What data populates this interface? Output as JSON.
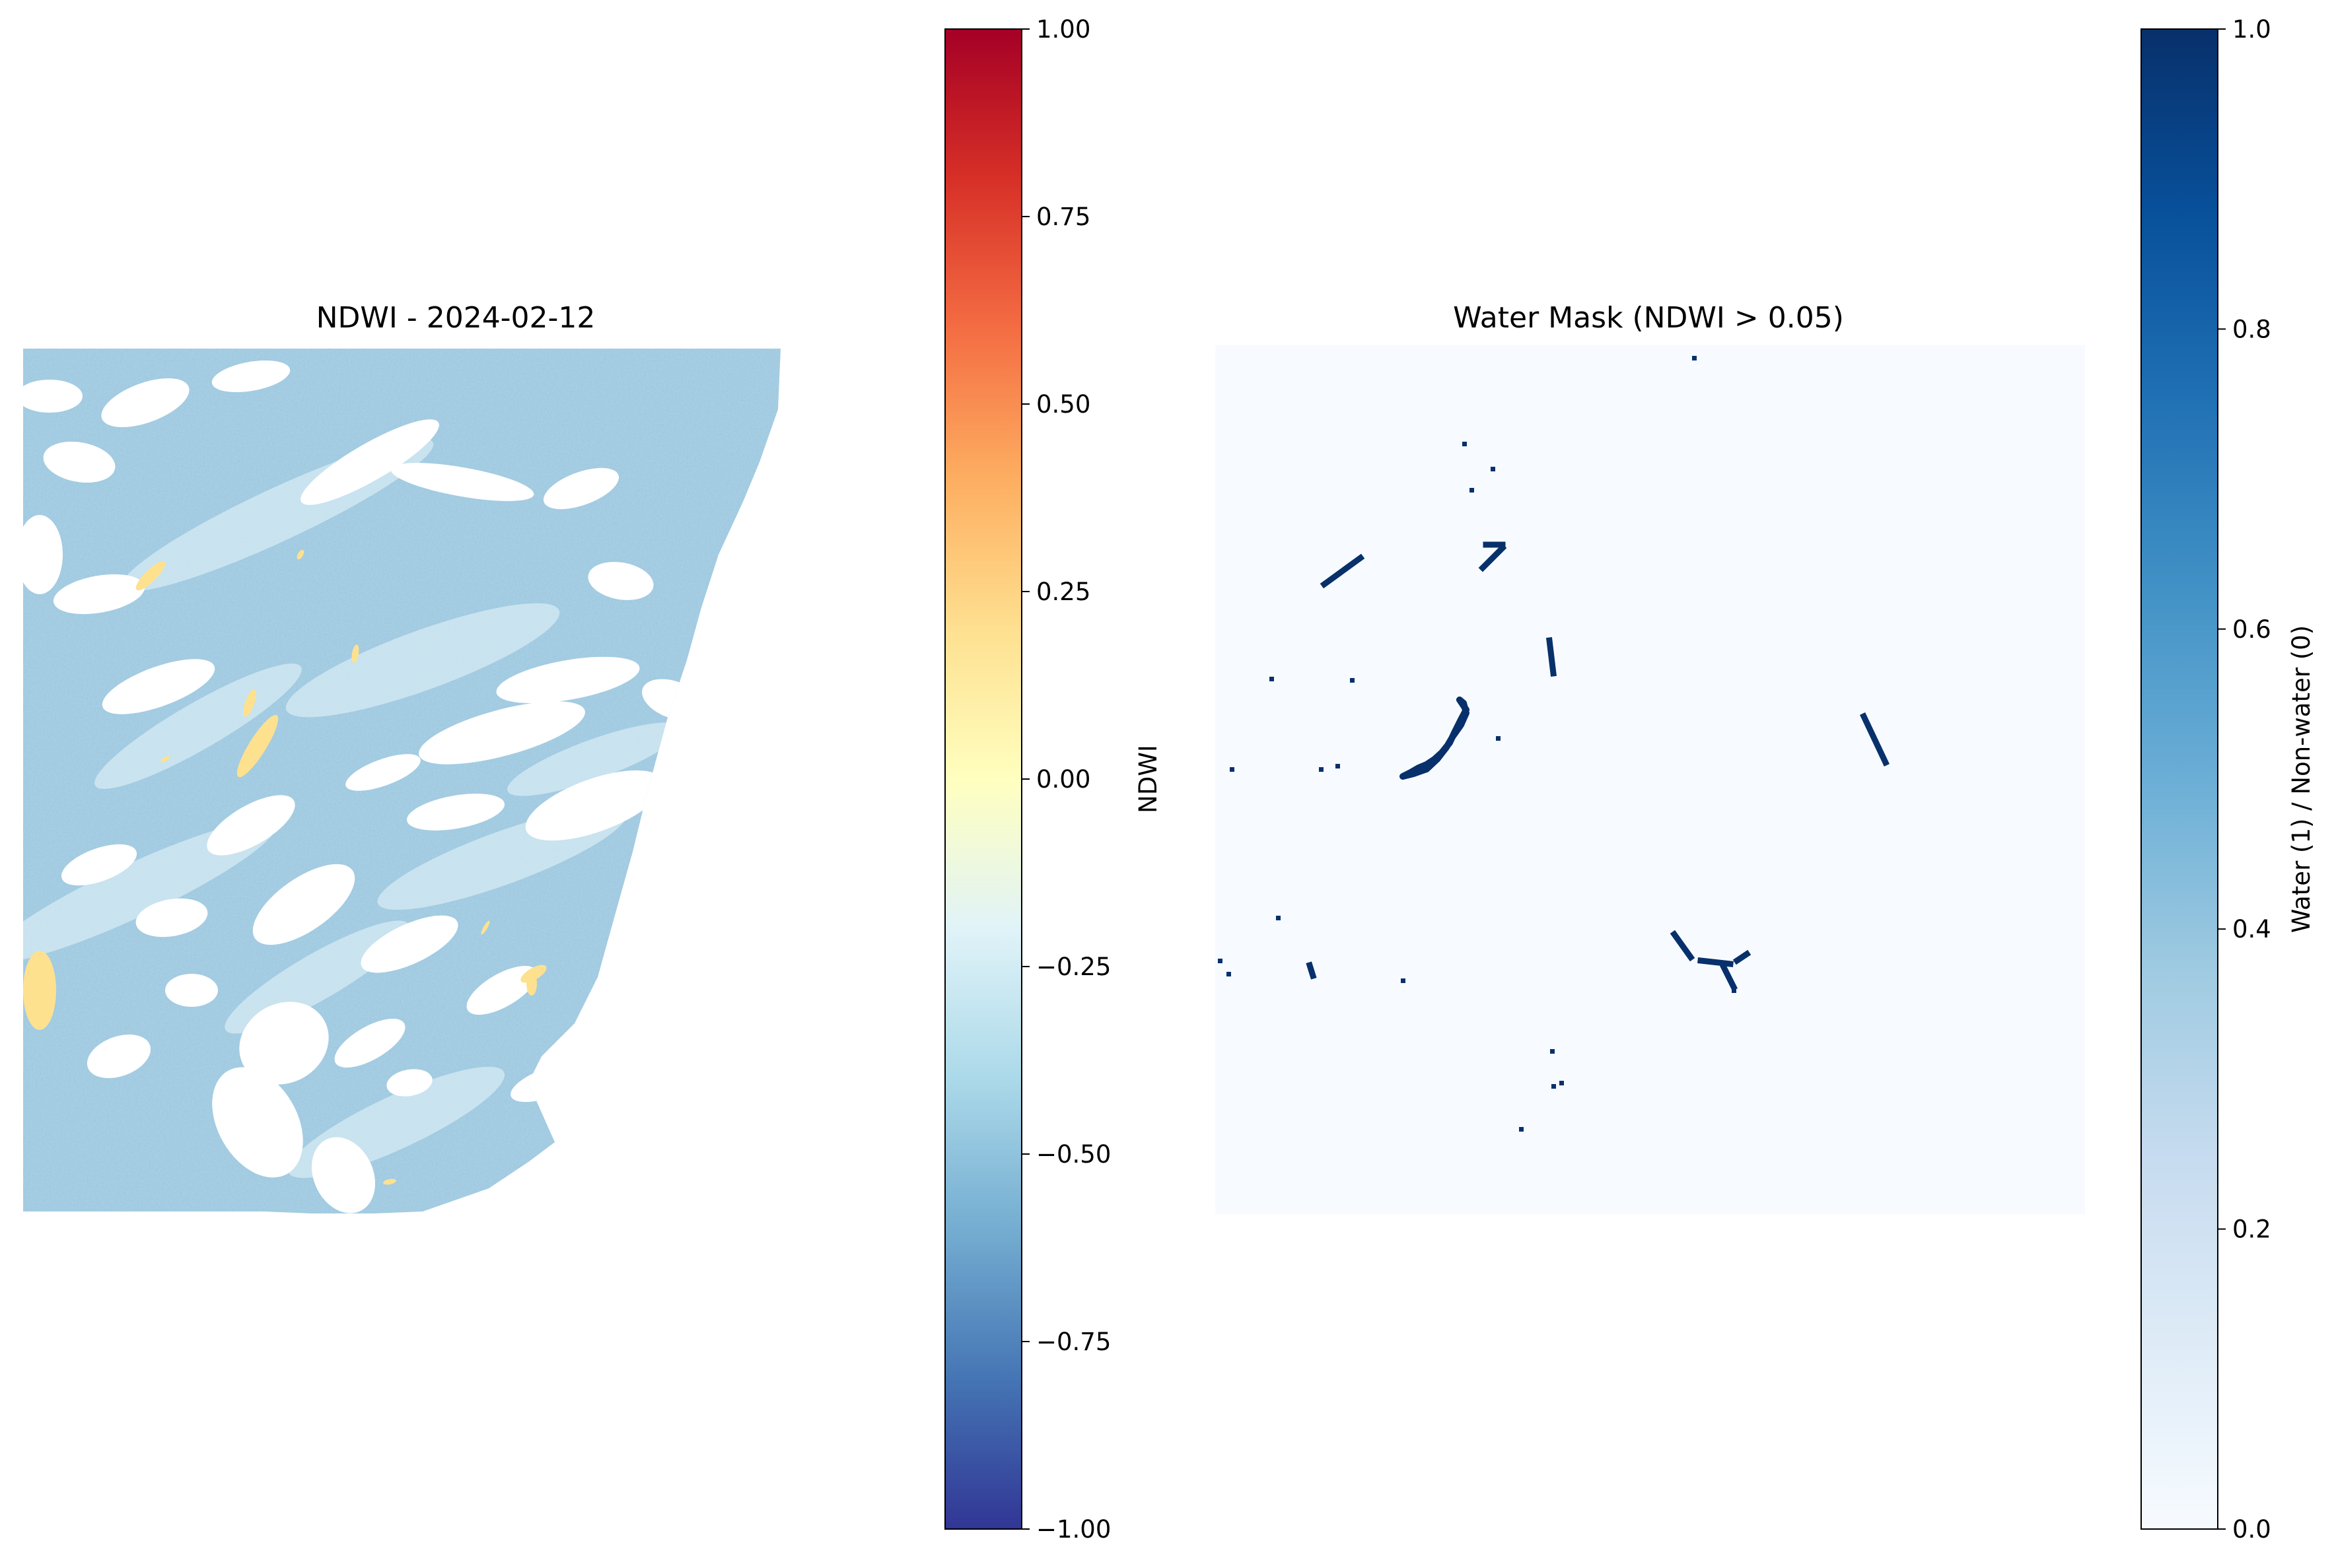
{
  "chart_data": [
    {
      "type": "heatmap",
      "title": "NDWI - 2024-02-12",
      "colormap": "RdYlBu_r",
      "colorbar": {
        "label": "NDWI",
        "range": [
          -1.0,
          1.0
        ],
        "ticks": [
          {
            "value": 1.0,
            "label": "1.00"
          },
          {
            "value": 0.75,
            "label": "0.75"
          },
          {
            "value": 0.5,
            "label": "0.50"
          },
          {
            "value": 0.25,
            "label": "0.25"
          },
          {
            "value": 0.0,
            "label": "0.00"
          },
          {
            "value": -0.25,
            "label": "−0.25"
          },
          {
            "value": -0.5,
            "label": "−0.50"
          },
          {
            "value": -0.75,
            "label": "−0.75"
          },
          {
            "value": -1.0,
            "label": "−1.00"
          }
        ],
        "colors": [
          "#313695",
          "#4575b4",
          "#74add1",
          "#abd9e9",
          "#e0f3f8",
          "#ffffbf",
          "#fee090",
          "#fdae61",
          "#f46d43",
          "#d73027",
          "#a50026"
        ]
      },
      "pixel_colors": {
        "background": "#a9d1e5",
        "pale": "#d2e9f2",
        "water": "#fde18f",
        "no_data": "#ffffff"
      },
      "axes": "off"
    },
    {
      "type": "heatmap",
      "title": "Water Mask (NDWI > 0.05)",
      "colormap": "Blues",
      "colorbar": {
        "label": "Water (1) / Non-water (0)",
        "range": [
          0.0,
          1.0
        ],
        "ticks": [
          {
            "value": 1.0,
            "label": "1.0"
          },
          {
            "value": 0.8,
            "label": "0.8"
          },
          {
            "value": 0.6,
            "label": "0.6"
          },
          {
            "value": 0.4,
            "label": "0.4"
          },
          {
            "value": 0.2,
            "label": "0.2"
          },
          {
            "value": 0.0,
            "label": "0.0"
          }
        ],
        "colors": [
          "#f7fbff",
          "#deebf7",
          "#c6dbef",
          "#9ecae1",
          "#6baed6",
          "#4292c6",
          "#2171b5",
          "#08519c",
          "#08306b"
        ]
      },
      "pixel_colors": {
        "non_water": "#f7fbff",
        "water": "#08306b"
      },
      "axes": "off"
    }
  ]
}
